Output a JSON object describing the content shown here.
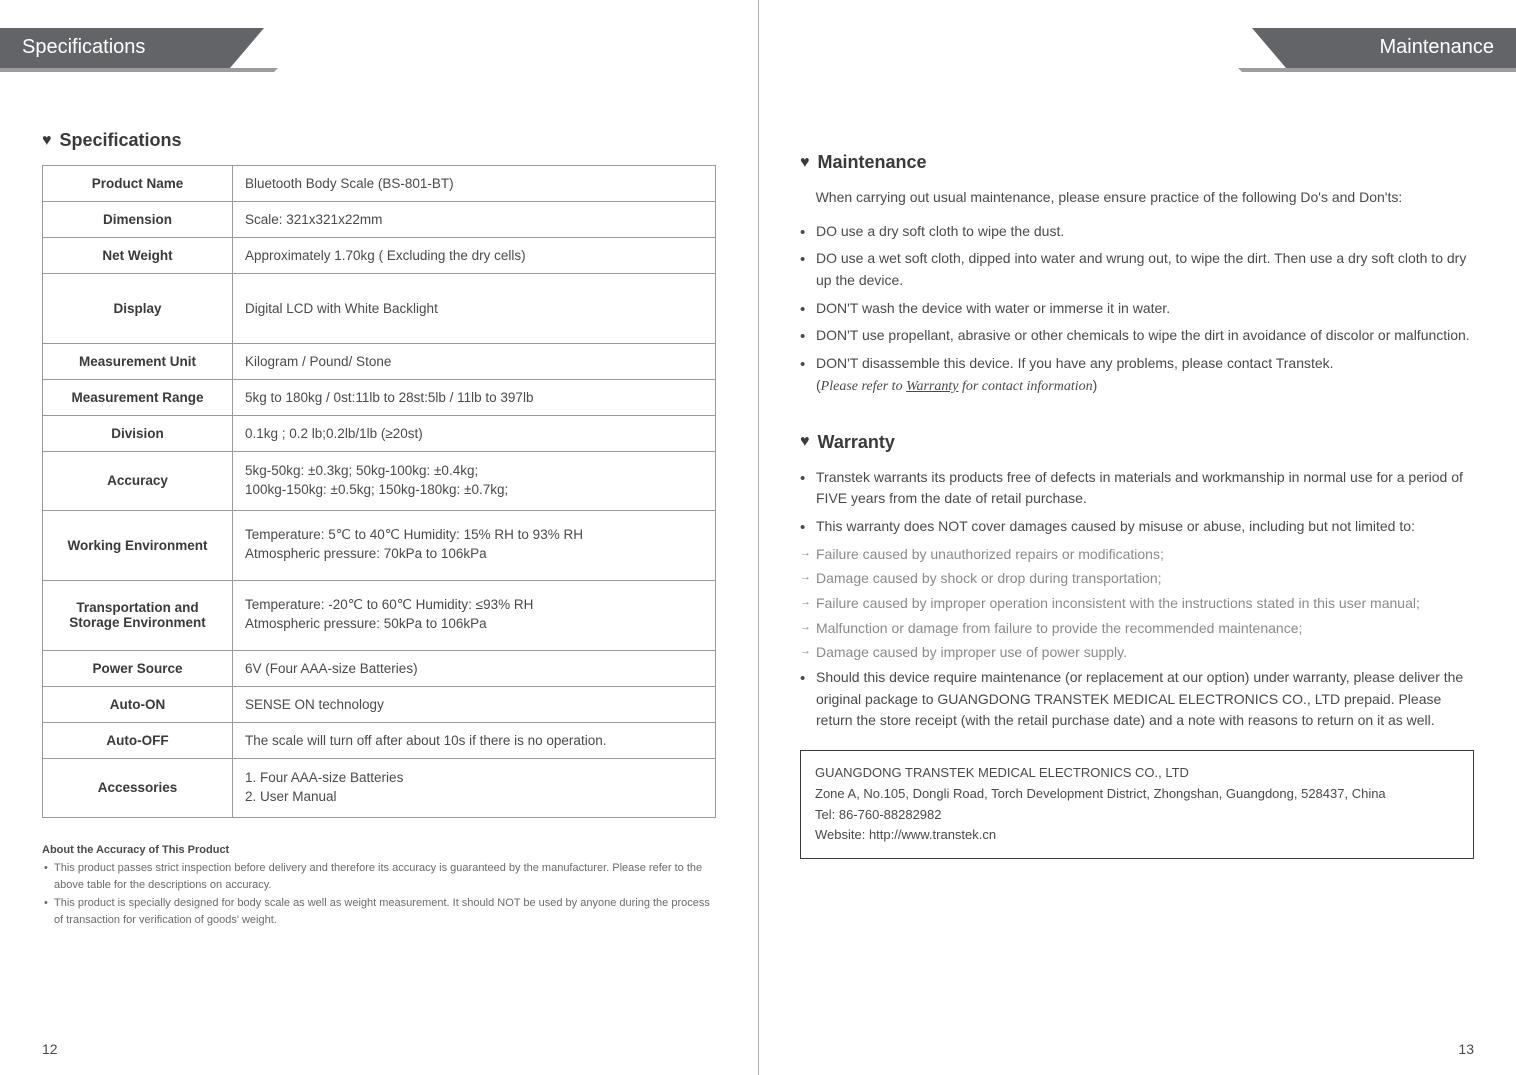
{
  "colors": {
    "tab_bg": "#626468",
    "tab_under": "#9a9c9f",
    "text_primary": "#4a4a4a",
    "text_heading": "#3a3a3a",
    "text_muted": "#8a8a8a",
    "border": "#9a9a9a",
    "divider": "#b0b0b0"
  },
  "typography": {
    "base_fontsize": 14,
    "heading_fontsize": 18,
    "tab_fontsize": 20,
    "footnote_fontsize": 11,
    "table_fontsize": 13.5
  },
  "left_page": {
    "tab_title": "Specifications",
    "section_title": "Specifications",
    "heart_glyph": "♥",
    "spec_table": {
      "rows": [
        {
          "name": "Product Name",
          "value": "Bluetooth Body Scale (BS-801-BT)"
        },
        {
          "name": "Dimension",
          "value": "Scale: 321x321x22mm"
        },
        {
          "name": "Net Weight",
          "value": "Approximately 1.70kg ( Excluding the dry cells)"
        },
        {
          "name": "Display",
          "value": "Digital LCD with White Backlight",
          "tall": true
        },
        {
          "name": "Measurement Unit",
          "value": "Kilogram / Pound/ Stone"
        },
        {
          "name": "Measurement Range",
          "value": "5kg to 180kg / 0st:11lb to 28st:5lb / 11lb to 397lb"
        },
        {
          "name": "Division",
          "value": "0.1kg ; 0.2 lb;0.2lb/1lb (≥20st)"
        },
        {
          "name": "Accuracy",
          "value": "5kg-50kg: ±0.3kg;         50kg-100kg: ±0.4kg;\n100kg-150kg: ±0.5kg;    150kg-180kg: ±0.7kg;"
        },
        {
          "name": "Working Environment",
          "value": "Temperature: 5℃ to 40℃     Humidity: 15% RH to 93% RH\nAtmospheric pressure: 70kPa to 106kPa",
          "tall": true
        },
        {
          "name": "Transportation and Storage Environment",
          "value": "Temperature: -20℃ to 60℃    Humidity: ≤93% RH\nAtmospheric pressure: 50kPa to 106kPa",
          "tall": true
        },
        {
          "name": "Power Source",
          "value": "6V (Four AAA-size Batteries)"
        },
        {
          "name": "Auto-ON",
          "value": "SENSE ON technology"
        },
        {
          "name": "Auto-OFF",
          "value": "The scale will turn off after about 10s if there is no operation."
        },
        {
          "name": "Accessories",
          "value": "1. Four AAA-size Batteries\n2. User Manual"
        }
      ]
    },
    "footnotes": {
      "title": "About the Accuracy of This Product",
      "lines": [
        "This product passes strict inspection before delivery and therefore its accuracy is guaranteed by the manufacturer. Please refer to the above table for the descriptions on accuracy.",
        "This product is specially designed for body scale as well as weight measurement. It should NOT be used by anyone during the process of transaction for verification of goods' weight."
      ]
    },
    "page_num": "12"
  },
  "right_page": {
    "tab_title": "Maintenance",
    "maintenance": {
      "title": "Maintenance",
      "intro": "    When carrying out usual maintenance, please ensure practice of the following Do's and Don'ts:",
      "bullets": [
        "DO use a dry soft cloth to wipe the dust.",
        "DO use a wet soft cloth, dipped into water and wrung out, to wipe the dirt. Then use a dry soft cloth to dry up the device.",
        "DON'T wash the device with water or immerse it in water.",
        "DON'T use propellant, abrasive or other chemicals to wipe the dirt in avoidance of discolor or malfunction.",
        "DON'T disassemble this device. If you have any problems, please contact Transtek."
      ],
      "ref_prefix": "(",
      "ref_italic_before": "Please refer to ",
      "ref_underline": "Warranty",
      "ref_italic_after": " for contact information",
      "ref_suffix": ")"
    },
    "warranty": {
      "title": "Warranty",
      "bullets_top": [
        "Transtek warrants its products free of defects in materials and workmanship in normal use for a period of FIVE years from the date of retail purchase.",
        "This warranty does NOT cover damages caused by misuse or abuse, including but not limited to:"
      ],
      "arrow_items": [
        "Failure caused by unauthorized repairs or modifications;",
        "Damage caused by shock or drop during transportation;",
        "Failure caused by improper operation inconsistent with the instructions stated in this user manual;",
        "Malfunction or damage from failure to provide the recommended maintenance;",
        "Damage caused by improper use of power supply."
      ],
      "bullets_bottom": [
        "Should this device require maintenance (or replacement at our option) under warranty, please deliver the original package to GUANGDONG TRANSTEK MEDICAL ELECTRONICS CO., LTD prepaid. Please return the store receipt (with the retail purchase date) and a note with reasons to return on it as well."
      ],
      "address": {
        "line1": "GUANGDONG TRANSTEK MEDICAL ELECTRONICS CO., LTD",
        "line2": "Zone A, No.105, Dongli Road, Torch Development District, Zhongshan, Guangdong, 528437, China",
        "line3": "Tel: 86-760-88282982",
        "line4": "Website: http://www.transtek.cn"
      }
    },
    "page_num": "13"
  }
}
